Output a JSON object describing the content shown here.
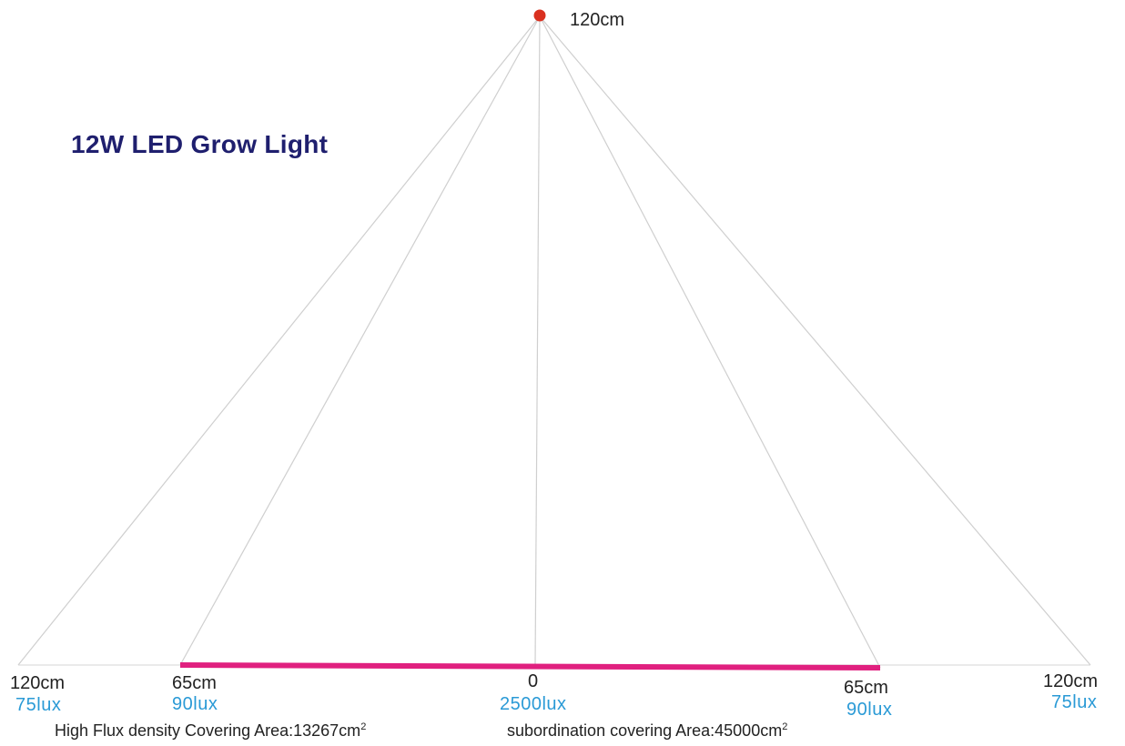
{
  "title": "12W LED Grow Light",
  "source": {
    "height_label": "120cm",
    "color": "#d9301f"
  },
  "colors": {
    "rays": "#cfcfcf",
    "high_flux_bar": "#e0207f",
    "lux_text": "#2a9ad6",
    "title_text": "#1f1f6e"
  },
  "points": {
    "far_left": {
      "distance": "120cm",
      "lux": "75lux"
    },
    "mid_left": {
      "distance": "65cm",
      "lux": "90lux"
    },
    "center": {
      "distance": "0",
      "lux": "2500lux"
    },
    "mid_right": {
      "distance": "65cm",
      "lux": "90lux"
    },
    "far_right": {
      "distance": "120cm",
      "lux": "75lux"
    }
  },
  "footer": {
    "high_flux_text": "High Flux density Covering Area:13267cm",
    "high_flux_unit_sup": "2",
    "subordination_text": "subordination covering Area:45000cm",
    "subordination_unit_sup": "2"
  }
}
